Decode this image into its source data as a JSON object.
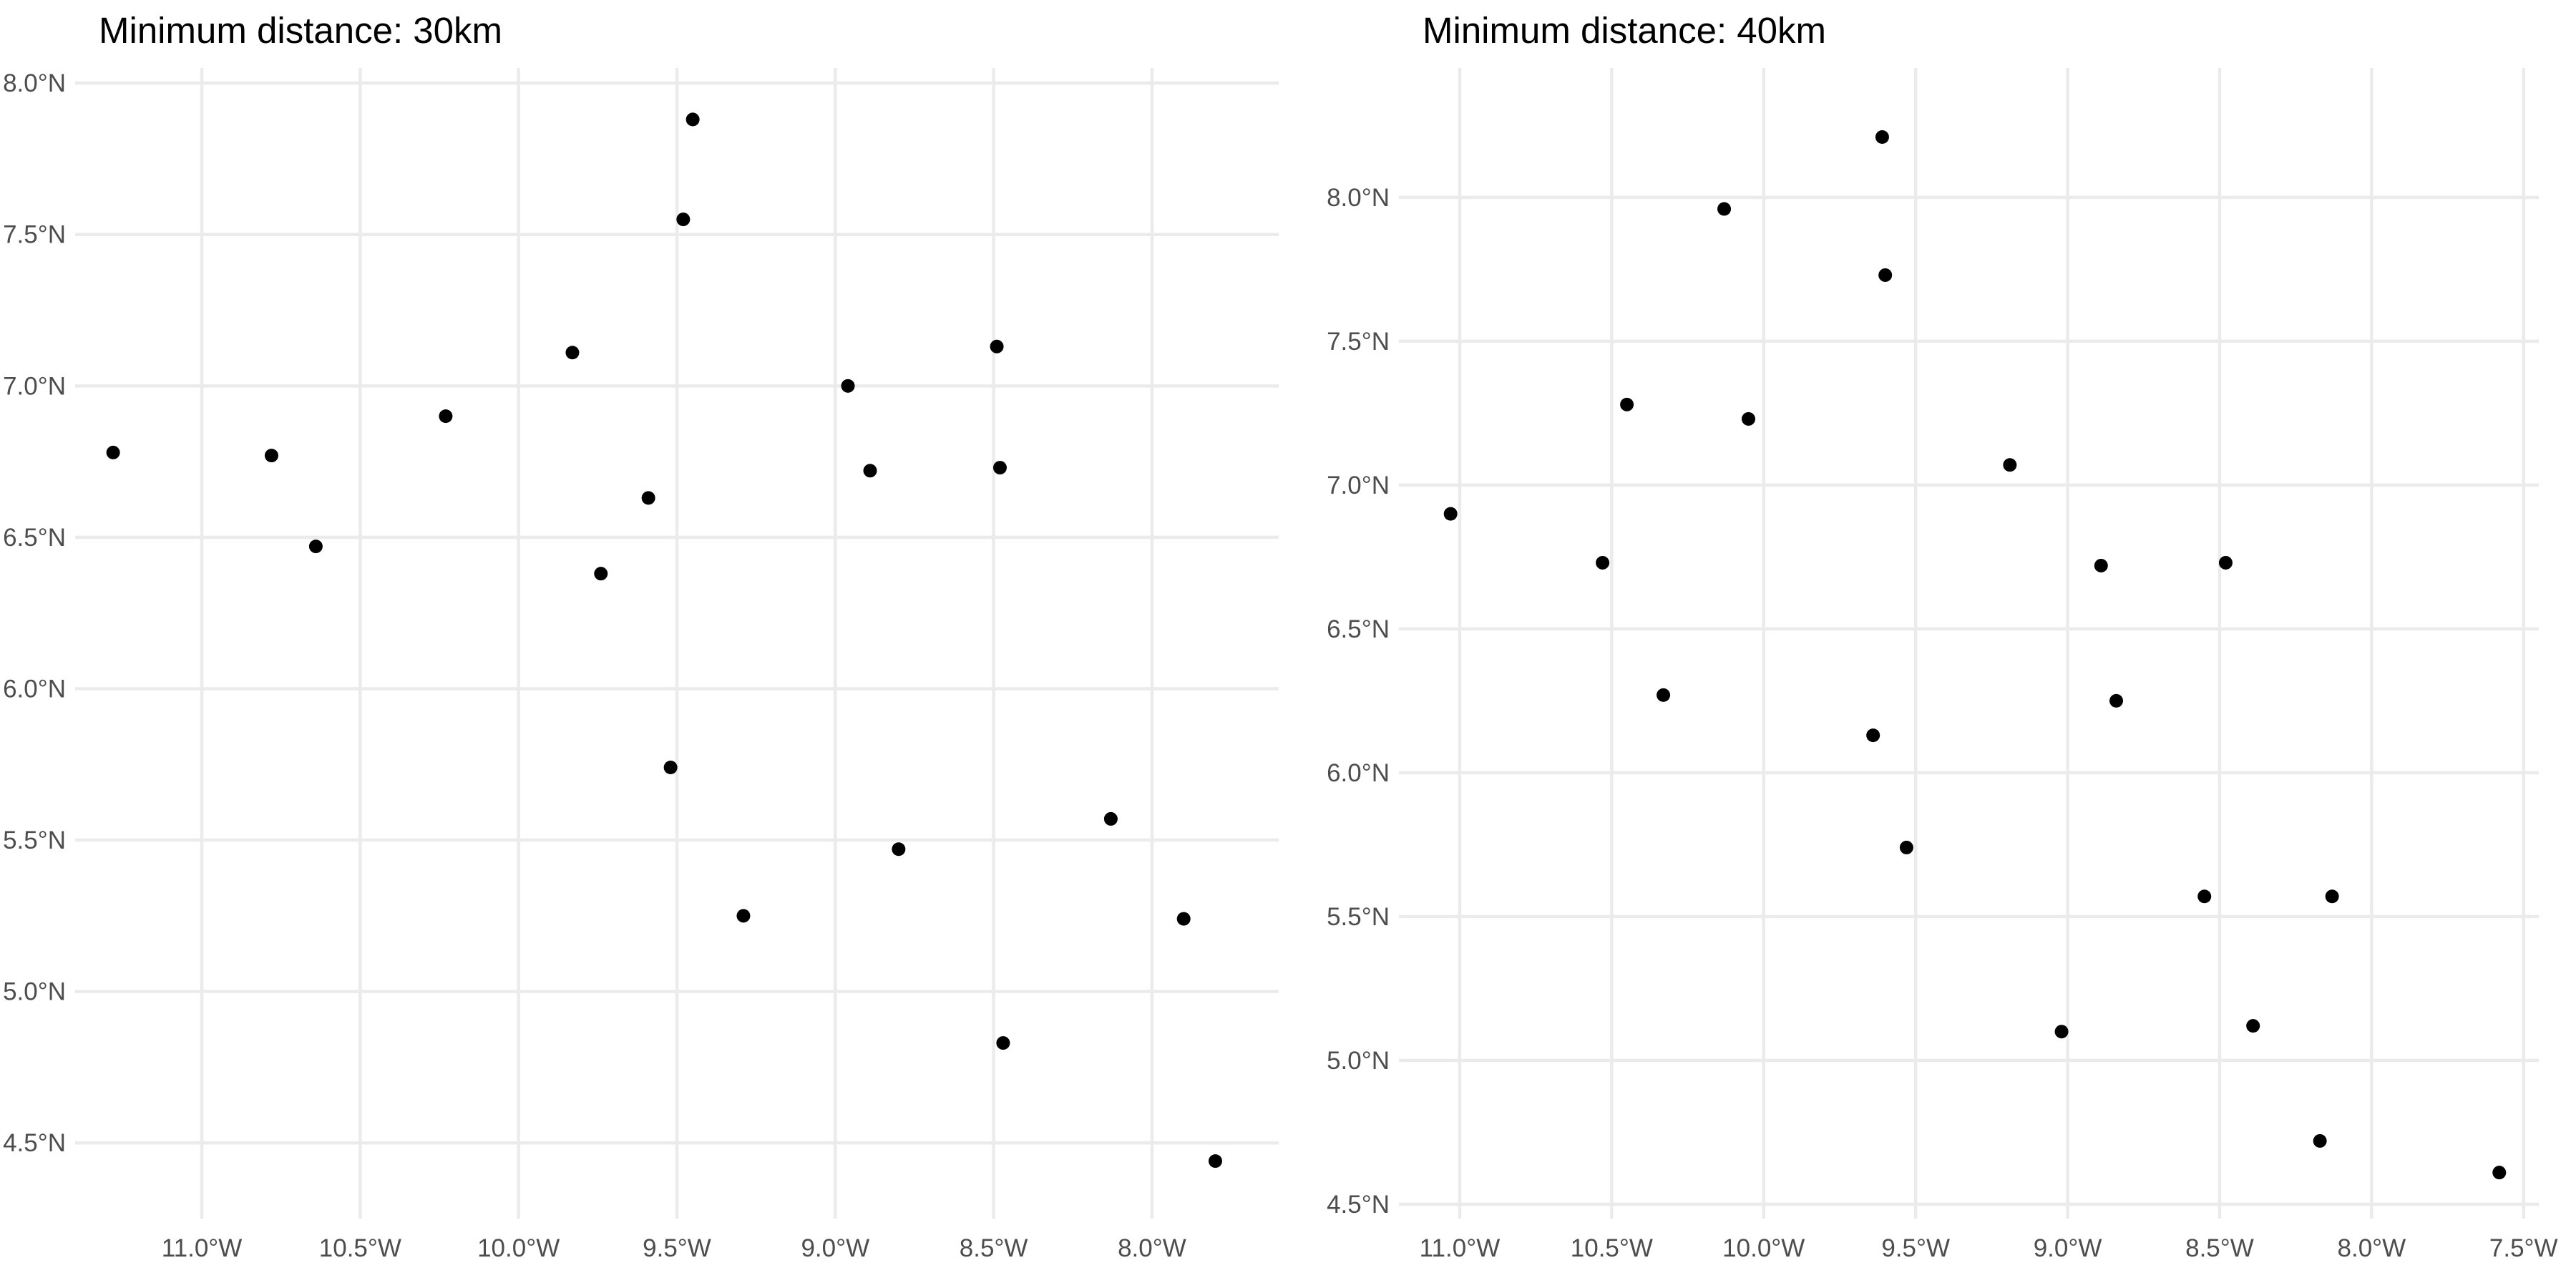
{
  "chart_data": [
    {
      "type": "scatter",
      "title": "Minimum distance: 30km",
      "xlabel": "",
      "ylabel": "",
      "xlim": [
        -11.4,
        -7.6
      ],
      "ylim": [
        4.25,
        8.05
      ],
      "grid": true,
      "legend": "none",
      "point_color": "#000000",
      "x_ticks": [
        {
          "value": -11.0,
          "label": "11.0°W"
        },
        {
          "value": -10.5,
          "label": "10.5°W"
        },
        {
          "value": -10.0,
          "label": "10.0°W"
        },
        {
          "value": -9.5,
          "label": "9.5°W"
        },
        {
          "value": -9.0,
          "label": "9.0°W"
        },
        {
          "value": -8.5,
          "label": "8.5°W"
        },
        {
          "value": -8.0,
          "label": "8.0°W"
        }
      ],
      "y_ticks": [
        {
          "value": 4.5,
          "label": "4.5°N"
        },
        {
          "value": 5.0,
          "label": "5.0°N"
        },
        {
          "value": 5.5,
          "label": "5.5°N"
        },
        {
          "value": 6.0,
          "label": "6.0°N"
        },
        {
          "value": 6.5,
          "label": "6.5°N"
        },
        {
          "value": 7.0,
          "label": "7.0°N"
        },
        {
          "value": 7.5,
          "label": "7.5°N"
        },
        {
          "value": 8.0,
          "label": "8.0°N"
        }
      ],
      "points": [
        {
          "x": -11.28,
          "y": 6.78
        },
        {
          "x": -10.78,
          "y": 6.77
        },
        {
          "x": -10.64,
          "y": 6.47
        },
        {
          "x": -10.23,
          "y": 6.9
        },
        {
          "x": -9.83,
          "y": 7.11
        },
        {
          "x": -9.74,
          "y": 6.38
        },
        {
          "x": -9.59,
          "y": 6.63
        },
        {
          "x": -9.52,
          "y": 5.74
        },
        {
          "x": -9.48,
          "y": 7.55
        },
        {
          "x": -9.45,
          "y": 7.88
        },
        {
          "x": -9.29,
          "y": 5.25
        },
        {
          "x": -8.96,
          "y": 7.0
        },
        {
          "x": -8.89,
          "y": 6.72
        },
        {
          "x": -8.8,
          "y": 5.47
        },
        {
          "x": -8.49,
          "y": 7.13
        },
        {
          "x": -8.48,
          "y": 6.73
        },
        {
          "x": -8.47,
          "y": 4.83
        },
        {
          "x": -8.13,
          "y": 5.57
        },
        {
          "x": -7.9,
          "y": 5.24
        },
        {
          "x": -7.8,
          "y": 4.44
        }
      ]
    },
    {
      "type": "scatter",
      "title": "Minimum distance: 40km",
      "xlabel": "",
      "ylabel": "",
      "xlim": [
        -11.2,
        -7.45
      ],
      "ylim": [
        4.45,
        8.45
      ],
      "grid": true,
      "legend": "none",
      "point_color": "#000000",
      "x_ticks": [
        {
          "value": -11.0,
          "label": "11.0°W"
        },
        {
          "value": -10.5,
          "label": "10.5°W"
        },
        {
          "value": -10.0,
          "label": "10.0°W"
        },
        {
          "value": -9.5,
          "label": "9.5°W"
        },
        {
          "value": -9.0,
          "label": "9.0°W"
        },
        {
          "value": -8.5,
          "label": "8.5°W"
        },
        {
          "value": -8.0,
          "label": "8.0°W"
        },
        {
          "value": -7.5,
          "label": "7.5°W"
        }
      ],
      "y_ticks": [
        {
          "value": 4.5,
          "label": "4.5°N"
        },
        {
          "value": 5.0,
          "label": "5.0°N"
        },
        {
          "value": 5.5,
          "label": "5.5°N"
        },
        {
          "value": 6.0,
          "label": "6.0°N"
        },
        {
          "value": 6.5,
          "label": "6.5°N"
        },
        {
          "value": 7.0,
          "label": "7.0°N"
        },
        {
          "value": 7.5,
          "label": "7.5°N"
        },
        {
          "value": 8.0,
          "label": "8.0°N"
        }
      ],
      "points": [
        {
          "x": -11.03,
          "y": 6.9
        },
        {
          "x": -10.53,
          "y": 6.73
        },
        {
          "x": -10.45,
          "y": 7.28
        },
        {
          "x": -10.33,
          "y": 6.27
        },
        {
          "x": -10.13,
          "y": 7.96
        },
        {
          "x": -10.05,
          "y": 7.23
        },
        {
          "x": -9.64,
          "y": 6.13
        },
        {
          "x": -9.61,
          "y": 8.21
        },
        {
          "x": -9.6,
          "y": 7.73
        },
        {
          "x": -9.53,
          "y": 5.74
        },
        {
          "x": -9.19,
          "y": 7.07
        },
        {
          "x": -9.02,
          "y": 5.1
        },
        {
          "x": -8.89,
          "y": 6.72
        },
        {
          "x": -8.84,
          "y": 6.25
        },
        {
          "x": -8.55,
          "y": 5.57
        },
        {
          "x": -8.48,
          "y": 6.73
        },
        {
          "x": -8.39,
          "y": 5.12
        },
        {
          "x": -8.17,
          "y": 4.72
        },
        {
          "x": -8.13,
          "y": 5.57
        },
        {
          "x": -7.58,
          "y": 4.61
        }
      ]
    }
  ]
}
